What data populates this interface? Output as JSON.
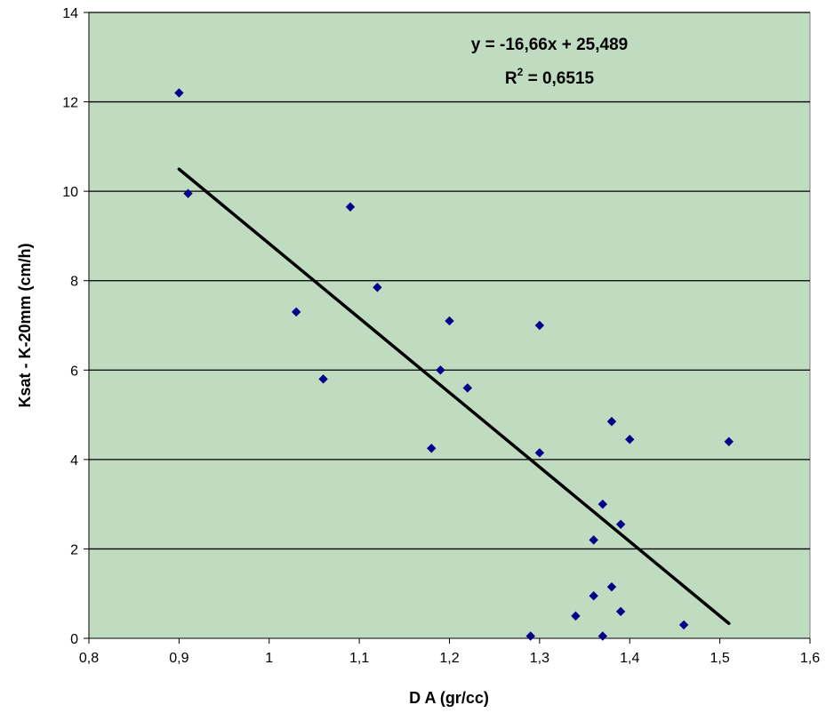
{
  "chart_data": {
    "type": "scatter",
    "xlabel": "D A  (gr/cc)",
    "ylabel": "Ksat - K-20mm (cm/h)",
    "xlim": [
      0.8,
      1.6
    ],
    "ylim": [
      0,
      14
    ],
    "x_ticks": [
      "0,8",
      "0,9",
      "1",
      "1,1",
      "1,2",
      "1,3",
      "1,4",
      "1,5",
      "1,6"
    ],
    "y_ticks": [
      "0",
      "2",
      "4",
      "6",
      "8",
      "10",
      "12",
      "14"
    ],
    "grid": "horizontal",
    "plot_background": "#c0dcc0",
    "point_color": "#00008b",
    "trendline_color": "#000000",
    "series": [
      {
        "x": [
          0.9,
          0.91,
          1.03,
          1.06,
          1.09,
          1.12,
          1.18,
          1.19,
          1.2,
          1.22,
          1.29,
          1.3,
          1.3,
          1.34,
          1.36,
          1.36,
          1.37,
          1.37,
          1.38,
          1.38,
          1.39,
          1.39,
          1.4,
          1.46,
          1.51
        ],
        "y": [
          12.2,
          9.95,
          7.3,
          5.8,
          9.65,
          7.85,
          4.25,
          6.0,
          7.1,
          5.6,
          0.05,
          7.0,
          4.15,
          0.5,
          2.2,
          0.95,
          3.0,
          0.05,
          4.85,
          1.15,
          2.55,
          0.6,
          4.45,
          0.3,
          4.4
        ]
      }
    ],
    "trendline": {
      "slope": -16.66,
      "intercept": 25.489,
      "x_range": [
        0.9,
        1.51
      ],
      "equation_label": "y = -16,66x + 25,489",
      "r2_label_prefix": "R",
      "r2_label_sup": "2",
      "r2_label_suffix": " = 0,6515"
    }
  }
}
